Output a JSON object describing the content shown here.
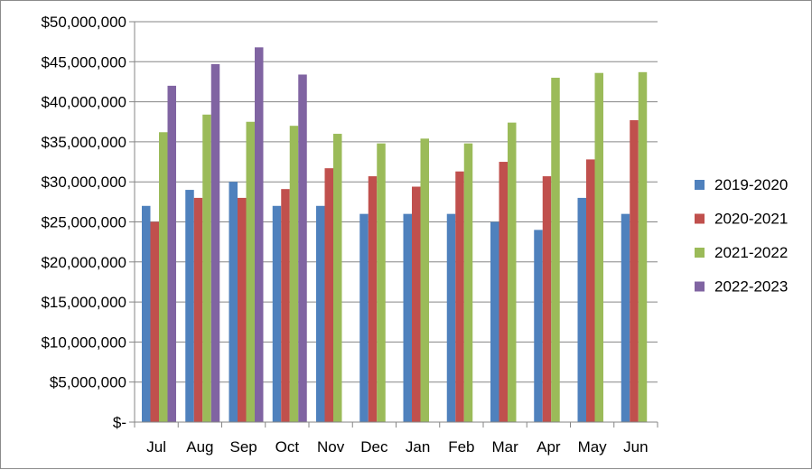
{
  "chart_data": {
    "type": "bar",
    "title": "",
    "xlabel": "",
    "ylabel": "",
    "ylim": [
      0,
      50000000
    ],
    "ytick_step": 5000000,
    "ytick_labels": [
      "$-",
      "$5,000,000",
      "$10,000,000",
      "$15,000,000",
      "$20,000,000",
      "$25,000,000",
      "$30,000,000",
      "$35,000,000",
      "$40,000,000",
      "$45,000,000",
      "$50,000,000"
    ],
    "categories": [
      "Jul",
      "Aug",
      "Sep",
      "Oct",
      "Nov",
      "Dec",
      "Jan",
      "Feb",
      "Mar",
      "Apr",
      "May",
      "Jun"
    ],
    "grid": "horizontal",
    "legend_position": "right",
    "series": [
      {
        "name": "2019-2020",
        "color": "#4F81BD",
        "values": [
          27000000,
          29000000,
          30000000,
          27000000,
          27000000,
          26000000,
          26000000,
          26000000,
          25000000,
          24000000,
          28000000,
          26000000
        ]
      },
      {
        "name": "2020-2021",
        "color": "#C0504D",
        "values": [
          25000000,
          28000000,
          28000000,
          29100000,
          31700000,
          30700000,
          29400000,
          31300000,
          32500000,
          30700000,
          32800000,
          37700000
        ]
      },
      {
        "name": "2021-2022",
        "color": "#9BBB59",
        "values": [
          36200000,
          38400000,
          37500000,
          37000000,
          36000000,
          34800000,
          35400000,
          34800000,
          37400000,
          43000000,
          43600000,
          43700000
        ]
      },
      {
        "name": "2022-2023",
        "color": "#8064A2",
        "values": [
          42000000,
          44700000,
          46800000,
          43400000,
          null,
          null,
          null,
          null,
          null,
          null,
          null,
          null
        ]
      }
    ]
  }
}
